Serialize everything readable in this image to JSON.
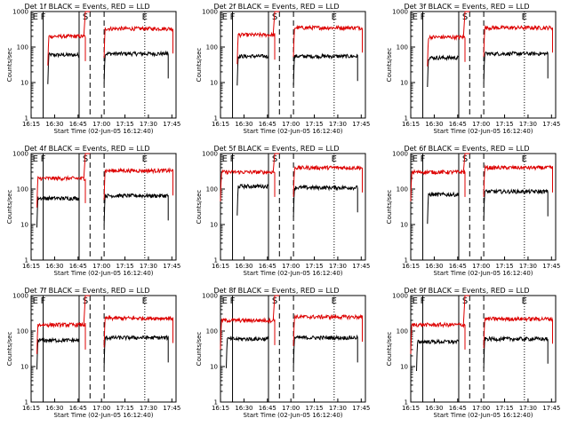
{
  "figure": {
    "ylabel": "Counts/sec",
    "xlabel": "Start Time (02-Jun-05 16:12:40)",
    "series_names": [
      "Events",
      "LLD"
    ],
    "series_colors": {
      "Events": "#000000",
      "LLD": "#dd0000"
    },
    "marker_labels": [
      "E",
      "F",
      "S",
      "E"
    ]
  },
  "chart_data": [
    {
      "type": "line",
      "title": "Det 1f BLACK = Events, RED = LLD",
      "ylabel": "Counts/sec",
      "xlabel": "Start Time (02-Jun-05 16:12:40)",
      "xticks": [
        "16:15",
        "16:30",
        "16:45",
        "17:00",
        "17:15",
        "17:30",
        "17:45"
      ],
      "xlim_min": [
        2.3,
        95
      ],
      "ylim": [
        1,
        1000
      ],
      "yticks": [
        "1",
        "10",
        "100",
        "1000"
      ],
      "yscale": "log",
      "markers": [
        {
          "label": "E",
          "t": 5
        },
        {
          "label": "F",
          "t": 10
        },
        {
          "label": "S",
          "t": 37
        },
        {
          "label": "E",
          "t": 75
        }
      ],
      "solid_lines_min": [
        10,
        33
      ],
      "dashed_lines_min": [
        40,
        49
      ],
      "dotted_lines_min": [
        75
      ],
      "series": [
        {
          "name": "Events",
          "segments": [
            {
              "start": 13,
              "end": 33,
              "level": 60
            },
            {
              "start": 49,
              "end": 90,
              "level": 65
            }
          ]
        },
        {
          "name": "LLD",
          "segments": [
            {
              "start": 13,
              "end": 37,
              "level": 200
            },
            {
              "start": 49,
              "end": 93,
              "level": 330
            }
          ]
        }
      ]
    },
    {
      "type": "line",
      "title": "Det 2f BLACK = Events, RED = LLD",
      "ylabel": "Counts/sec",
      "xlabel": "Start Time (02-Jun-05 16:12:40)",
      "xticks": [
        "16:15",
        "16:30",
        "16:45",
        "17:00",
        "17:15",
        "17:30",
        "17:45"
      ],
      "xlim_min": [
        2.3,
        95
      ],
      "ylim": [
        1,
        1000
      ],
      "yticks": [
        "1",
        "10",
        "100",
        "1000"
      ],
      "yscale": "log",
      "markers": [
        {
          "label": "E",
          "t": 5
        },
        {
          "label": "F",
          "t": 10
        },
        {
          "label": "S",
          "t": 37
        },
        {
          "label": "E",
          "t": 75
        }
      ],
      "solid_lines_min": [
        10,
        33
      ],
      "dashed_lines_min": [
        40,
        49
      ],
      "dotted_lines_min": [
        75
      ],
      "series": [
        {
          "name": "Events",
          "segments": [
            {
              "start": 13,
              "end": 33,
              "level": 55
            },
            {
              "start": 49,
              "end": 90,
              "level": 55
            }
          ]
        },
        {
          "name": "LLD",
          "segments": [
            {
              "start": 13,
              "end": 37,
              "level": 220
            },
            {
              "start": 49,
              "end": 93,
              "level": 350
            }
          ]
        }
      ]
    },
    {
      "type": "line",
      "title": "Det 3f BLACK = Events, RED = LLD",
      "ylabel": "Counts/sec",
      "xlabel": "Start Time (02-Jun-05 16:12:40)",
      "xticks": [
        "16:15",
        "16:30",
        "16:45",
        "17:00",
        "17:15",
        "17:30",
        "17:45"
      ],
      "xlim_min": [
        2.3,
        95
      ],
      "ylim": [
        1,
        1000
      ],
      "yticks": [
        "1",
        "10",
        "100",
        "1000"
      ],
      "yscale": "log",
      "markers": [
        {
          "label": "E",
          "t": 5
        },
        {
          "label": "F",
          "t": 10
        },
        {
          "label": "S",
          "t": 37
        },
        {
          "label": "E",
          "t": 75
        }
      ],
      "solid_lines_min": [
        10,
        33
      ],
      "dashed_lines_min": [
        40,
        49
      ],
      "dotted_lines_min": [
        75
      ],
      "series": [
        {
          "name": "Events",
          "segments": [
            {
              "start": 13,
              "end": 33,
              "level": 50
            },
            {
              "start": 49,
              "end": 90,
              "level": 65
            }
          ]
        },
        {
          "name": "LLD",
          "segments": [
            {
              "start": 13,
              "end": 37,
              "level": 190
            },
            {
              "start": 49,
              "end": 93,
              "level": 350
            }
          ]
        }
      ]
    },
    {
      "type": "line",
      "title": "Det 4f BLACK = Events, RED = LLD",
      "ylabel": "Counts/sec",
      "xlabel": "Start Time (02-Jun-05 16:12:40)",
      "xticks": [
        "16:15",
        "16:30",
        "16:45",
        "17:00",
        "17:15",
        "17:30",
        "17:45"
      ],
      "xlim_min": [
        2.3,
        95
      ],
      "ylim": [
        1,
        1000
      ],
      "yticks": [
        "1",
        "10",
        "100",
        "1000"
      ],
      "yscale": "log",
      "markers": [
        {
          "label": "E",
          "t": 5
        },
        {
          "label": "F",
          "t": 10
        },
        {
          "label": "S",
          "t": 37
        },
        {
          "label": "E",
          "t": 75
        }
      ],
      "solid_lines_min": [
        10,
        33
      ],
      "dashed_lines_min": [
        40,
        49
      ],
      "dotted_lines_min": [
        75
      ],
      "series": [
        {
          "name": "Events",
          "segments": [
            {
              "start": 6,
              "end": 33,
              "level": 55
            },
            {
              "start": 49,
              "end": 90,
              "level": 65
            }
          ]
        },
        {
          "name": "LLD",
          "segments": [
            {
              "start": 6,
              "end": 37,
              "level": 200
            },
            {
              "start": 49,
              "end": 93,
              "level": 330
            }
          ]
        }
      ]
    },
    {
      "type": "line",
      "title": "Det 5f BLACK = Events, RED = LLD",
      "ylabel": "Counts/sec",
      "xlabel": "Start Time (02-Jun-05 16:12:40)",
      "xticks": [
        "16:15",
        "16:30",
        "16:45",
        "17:00",
        "17:15",
        "17:30",
        "17:45"
      ],
      "xlim_min": [
        2.3,
        95
      ],
      "ylim": [
        1,
        1000
      ],
      "yticks": [
        "1",
        "10",
        "100",
        "1000"
      ],
      "yscale": "log",
      "markers": [
        {
          "label": "E",
          "t": 5
        },
        {
          "label": "F",
          "t": 10
        },
        {
          "label": "S",
          "t": 37
        },
        {
          "label": "E",
          "t": 75
        }
      ],
      "solid_lines_min": [
        10,
        33
      ],
      "dashed_lines_min": [
        40,
        49
      ],
      "dotted_lines_min": [
        75
      ],
      "series": [
        {
          "name": "Events",
          "segments": [
            {
              "start": 13,
              "end": 33,
              "level": 120
            },
            {
              "start": 49,
              "end": 90,
              "level": 110
            }
          ]
        },
        {
          "name": "LLD",
          "segments": [
            {
              "start": 2.3,
              "end": 37,
              "level": 300
            },
            {
              "start": 49,
              "end": 93,
              "level": 400
            }
          ]
        }
      ]
    },
    {
      "type": "line",
      "title": "Det 6f BLACK = Events, RED = LLD",
      "ylabel": "Counts/sec",
      "xlabel": "Start Time (02-Jun-05 16:12:40)",
      "xticks": [
        "16:15",
        "16:30",
        "16:45",
        "17:00",
        "17:15",
        "17:30",
        "17:45"
      ],
      "xlim_min": [
        2.3,
        95
      ],
      "ylim": [
        1,
        1000
      ],
      "yticks": [
        "1",
        "10",
        "100",
        "1000"
      ],
      "yscale": "log",
      "markers": [
        {
          "label": "E",
          "t": 5
        },
        {
          "label": "F",
          "t": 10
        },
        {
          "label": "S",
          "t": 37
        },
        {
          "label": "E",
          "t": 75
        }
      ],
      "solid_lines_min": [
        10,
        33
      ],
      "dashed_lines_min": [
        40,
        49
      ],
      "dotted_lines_min": [
        75
      ],
      "series": [
        {
          "name": "Events",
          "segments": [
            {
              "start": 13,
              "end": 33,
              "level": 70
            },
            {
              "start": 49,
              "end": 90,
              "level": 85
            }
          ]
        },
        {
          "name": "LLD",
          "segments": [
            {
              "start": 2.3,
              "end": 37,
              "level": 300
            },
            {
              "start": 49,
              "end": 93,
              "level": 400
            }
          ]
        }
      ]
    },
    {
      "type": "line",
      "title": "Det 7f BLACK = Events, RED = LLD",
      "ylabel": "Counts/sec",
      "xlabel": "Start Time (02-Jun-05 16:12:40)",
      "xticks": [
        "16:15",
        "16:30",
        "16:45",
        "17:00",
        "17:15",
        "17:30",
        "17:45"
      ],
      "xlim_min": [
        2.3,
        95
      ],
      "ylim": [
        1,
        1000
      ],
      "yticks": [
        "1",
        "10",
        "100",
        "1000"
      ],
      "yscale": "log",
      "markers": [
        {
          "label": "E",
          "t": 5
        },
        {
          "label": "F",
          "t": 10
        },
        {
          "label": "S",
          "t": 37
        },
        {
          "label": "E",
          "t": 75
        }
      ],
      "solid_lines_min": [
        10,
        33
      ],
      "dashed_lines_min": [
        40,
        49
      ],
      "dotted_lines_min": [
        75
      ],
      "series": [
        {
          "name": "Events",
          "segments": [
            {
              "start": 6,
              "end": 33,
              "level": 55
            },
            {
              "start": 49,
              "end": 90,
              "level": 65
            }
          ]
        },
        {
          "name": "LLD",
          "segments": [
            {
              "start": 6,
              "end": 37,
              "level": 150
            },
            {
              "start": 49,
              "end": 93,
              "level": 230
            }
          ]
        }
      ]
    },
    {
      "type": "line",
      "title": "Det 8f BLACK = Events, RED = LLD",
      "ylabel": "Counts/sec",
      "xlabel": "Start Time (02-Jun-05 16:12:40)",
      "xticks": [
        "16:15",
        "16:30",
        "16:45",
        "17:00",
        "17:15",
        "17:30",
        "17:45"
      ],
      "xlim_min": [
        2.3,
        95
      ],
      "ylim": [
        1,
        1000
      ],
      "yticks": [
        "1",
        "10",
        "100",
        "1000"
      ],
      "yscale": "log",
      "markers": [
        {
          "label": "E",
          "t": 5
        },
        {
          "label": "F",
          "t": 10
        },
        {
          "label": "S",
          "t": 37
        },
        {
          "label": "E",
          "t": 75
        }
      ],
      "solid_lines_min": [
        10,
        33
      ],
      "dashed_lines_min": [
        40,
        49
      ],
      "dotted_lines_min": [
        75
      ],
      "series": [
        {
          "name": "Events",
          "segments": [
            {
              "start": 6,
              "end": 33,
              "level": 60
            },
            {
              "start": 49,
              "end": 90,
              "level": 65
            }
          ]
        },
        {
          "name": "LLD",
          "segments": [
            {
              "start": 2.3,
              "end": 37,
              "level": 200
            },
            {
              "start": 49,
              "end": 93,
              "level": 250
            }
          ]
        }
      ]
    },
    {
      "type": "line",
      "title": "Det 9f BLACK = Events, RED = LLD",
      "ylabel": "Counts/sec",
      "xlabel": "Start Time (02-Jun-05 16:12:40)",
      "xticks": [
        "16:15",
        "16:30",
        "16:45",
        "17:00",
        "17:15",
        "17:30",
        "17:45"
      ],
      "xlim_min": [
        2.3,
        95
      ],
      "ylim": [
        1,
        1000
      ],
      "yticks": [
        "1",
        "10",
        "100",
        "1000"
      ],
      "yscale": "log",
      "markers": [
        {
          "label": "E",
          "t": 5
        },
        {
          "label": "F",
          "t": 10
        },
        {
          "label": "S",
          "t": 37
        },
        {
          "label": "E",
          "t": 75
        }
      ],
      "solid_lines_min": [
        10,
        33
      ],
      "dashed_lines_min": [
        40,
        49
      ],
      "dotted_lines_min": [
        75
      ],
      "series": [
        {
          "name": "Events",
          "segments": [
            {
              "start": 6,
              "end": 33,
              "level": 50
            },
            {
              "start": 49,
              "end": 90,
              "level": 60
            }
          ]
        },
        {
          "name": "LLD",
          "segments": [
            {
              "start": 2.3,
              "end": 37,
              "level": 150
            },
            {
              "start": 49,
              "end": 93,
              "level": 220
            }
          ]
        }
      ]
    }
  ]
}
